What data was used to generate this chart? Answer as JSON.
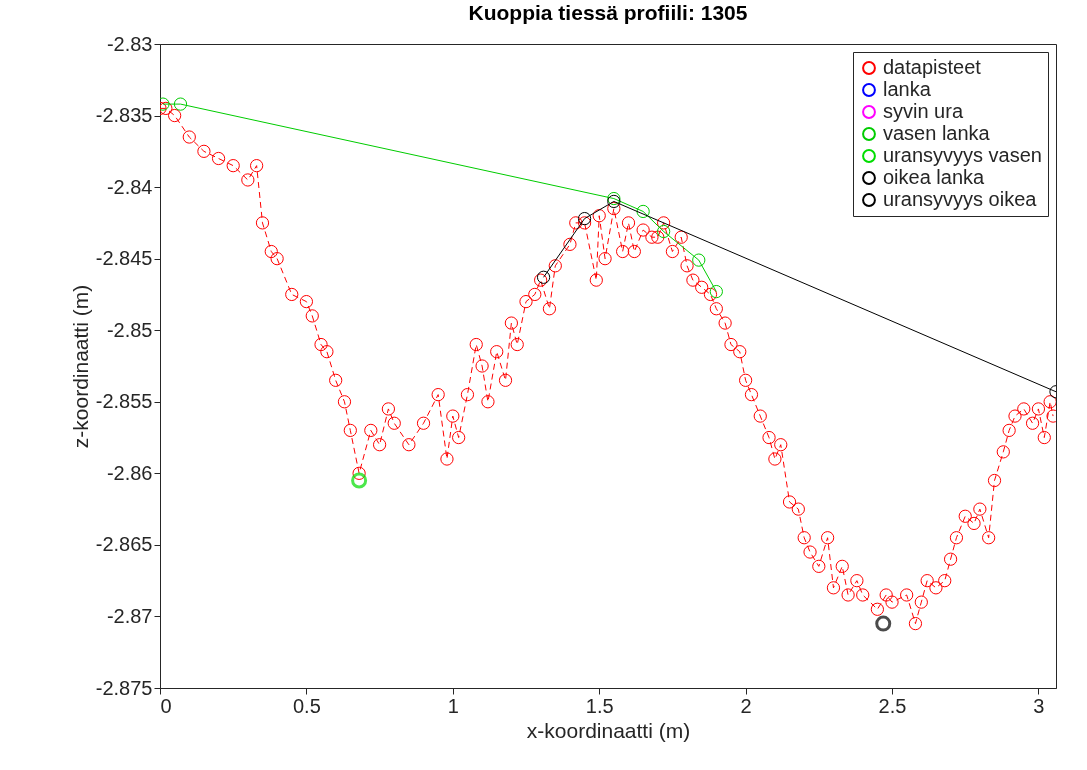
{
  "chart_data": {
    "type": "line",
    "title": "Kuoppia tiessä profiili: 1305",
    "xlabel": "x-koordinaatti (m)",
    "ylabel": "z-koordinaatti (m)",
    "xlim": [
      0,
      3.06
    ],
    "xticks": [
      0,
      0.5,
      1,
      1.5,
      2,
      2.5,
      3
    ],
    "ylim": [
      -2.875,
      -2.83
    ],
    "yticks": [
      -2.875,
      -2.87,
      -2.865,
      -2.86,
      -2.855,
      -2.85,
      -2.845,
      -2.84,
      -2.835,
      -2.83
    ],
    "grid": false,
    "legend": "top right",
    "marker": "circle",
    "series": [
      {
        "name": "datapisteet",
        "line_style": "dashed",
        "color": "#ff0000",
        "x": [
          0,
          0.02,
          0.05,
          0.1,
          0.15,
          0.2,
          0.25,
          0.3,
          0.33,
          0.35,
          0.38,
          0.4,
          0.45,
          0.5,
          0.52,
          0.55,
          0.57,
          0.6,
          0.63,
          0.65,
          0.68,
          0.72,
          0.75,
          0.78,
          0.8,
          0.85,
          0.9,
          0.95,
          0.98,
          1,
          1.02,
          1.05,
          1.08,
          1.1,
          1.12,
          1.15,
          1.18,
          1.2,
          1.22,
          1.25,
          1.28,
          1.3,
          1.33,
          1.35,
          1.4,
          1.42,
          1.45,
          1.49,
          1.5,
          1.52,
          1.55,
          1.58,
          1.6,
          1.62,
          1.65,
          1.68,
          1.7,
          1.72,
          1.75,
          1.78,
          1.8,
          1.82,
          1.85,
          1.88,
          1.9,
          1.93,
          1.95,
          1.98,
          2,
          2.02,
          2.05,
          2.08,
          2.1,
          2.12,
          2.15,
          2.18,
          2.2,
          2.22,
          2.25,
          2.28,
          2.3,
          2.33,
          2.35,
          2.38,
          2.4,
          2.45,
          2.48,
          2.5,
          2.55,
          2.58,
          2.6,
          2.62,
          2.65,
          2.68,
          2.7,
          2.72,
          2.75,
          2.78,
          2.8,
          2.83,
          2.85,
          2.88,
          2.9,
          2.92,
          2.95,
          2.98,
          3,
          3.02,
          3.04,
          3.05
        ],
        "values": [
          -2.8345,
          -2.8345,
          -2.835,
          -2.8365,
          -2.8375,
          -2.838,
          -2.8385,
          -2.8395,
          -2.8385,
          -2.8425,
          -2.8445,
          -2.845,
          -2.8475,
          -2.848,
          -2.849,
          -2.851,
          -2.8515,
          -2.8535,
          -2.855,
          -2.857,
          -2.86,
          -2.857,
          -2.858,
          -2.8555,
          -2.8565,
          -2.858,
          -2.8565,
          -2.8545,
          -2.859,
          -2.856,
          -2.8575,
          -2.8545,
          -2.851,
          -2.8525,
          -2.855,
          -2.8515,
          -2.8535,
          -2.8495,
          -2.851,
          -2.848,
          -2.8475,
          -2.8465,
          -2.8485,
          -2.8455,
          -2.844,
          -2.8425,
          -2.8425,
          -2.8465,
          -2.842,
          -2.845,
          -2.8415,
          -2.8445,
          -2.8425,
          -2.8445,
          -2.843,
          -2.8435,
          -2.8435,
          -2.8425,
          -2.8445,
          -2.8435,
          -2.8455,
          -2.8465,
          -2.847,
          -2.8475,
          -2.8485,
          -2.8495,
          -2.851,
          -2.8515,
          -2.8535,
          -2.8545,
          -2.856,
          -2.8575,
          -2.859,
          -2.858,
          -2.862,
          -2.8625,
          -2.8645,
          -2.8655,
          -2.8665,
          -2.8645,
          -2.868,
          -2.8665,
          -2.8685,
          -2.8675,
          -2.8685,
          -2.8695,
          -2.8685,
          -2.869,
          -2.8685,
          -2.8705,
          -2.869,
          -2.8675,
          -2.868,
          -2.8675,
          -2.866,
          -2.8645,
          -2.863,
          -2.8635,
          -2.8625,
          -2.8645,
          -2.8605,
          -2.8585,
          -2.857,
          -2.856,
          -2.8555,
          -2.8565,
          -2.8555,
          -2.8575,
          -2.855,
          -2.856
        ]
      },
      {
        "name": "lanka",
        "type": "line",
        "line_style": "solid",
        "color": "#0000ff"
      },
      {
        "name": "syvin ura",
        "type": "scatter",
        "color": "#ff00ff"
      },
      {
        "name": "vasen lanka",
        "type": "line",
        "line_style": "solid",
        "color": "#00cc00",
        "x": [
          0.01,
          0.07,
          1.55,
          1.65,
          1.72,
          1.84,
          1.9
        ],
        "values": [
          -2.8342,
          -2.8342,
          -2.8408,
          -2.8417,
          -2.8431,
          -2.8451,
          -2.8473
        ]
      },
      {
        "name": "uransyvyys vasen",
        "type": "scatter",
        "color": "#00dd00",
        "x": [
          0.68
        ],
        "values": [
          -2.8605
        ]
      },
      {
        "name": "oikea lanka",
        "type": "line",
        "line_style": "solid",
        "color": "#000000",
        "x": [
          1.31,
          1.45,
          1.55,
          3.06
        ],
        "values": [
          -2.8463,
          -2.8422,
          -2.841,
          -2.8543
        ]
      },
      {
        "name": "uransyvyys oikea",
        "type": "scatter",
        "color": "#000000",
        "x": [
          2.47
        ],
        "values": [
          -2.8705
        ]
      }
    ]
  }
}
